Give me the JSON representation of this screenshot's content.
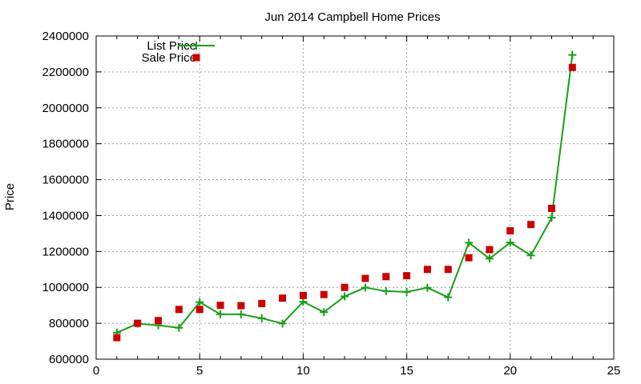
{
  "chart_data": {
    "type": "line",
    "title": "Jun 2014 Campbell Home Prices",
    "xlabel": "",
    "ylabel": "Price",
    "xlim": [
      0,
      25
    ],
    "ylim": [
      600000,
      2400000
    ],
    "x_ticks": [
      0,
      5,
      10,
      15,
      20,
      25
    ],
    "y_ticks": [
      600000,
      800000,
      1000000,
      1200000,
      1400000,
      1600000,
      1800000,
      2000000,
      2200000,
      2400000
    ],
    "grid": true,
    "legend_position": "top-left",
    "x": [
      1,
      2,
      3,
      4,
      5,
      6,
      7,
      8,
      9,
      10,
      11,
      12,
      13,
      14,
      15,
      16,
      17,
      18,
      19,
      20,
      21,
      22,
      23
    ],
    "series": [
      {
        "name": "List Price",
        "style": "linespoints",
        "marker": "plus",
        "color": "#1a9e1a",
        "values": [
          748000,
          798000,
          789000,
          775000,
          918000,
          850000,
          850000,
          828000,
          799000,
          920000,
          862000,
          950000,
          999000,
          979000,
          975000,
          998000,
          945000,
          1249000,
          1160000,
          1250000,
          1178000,
          1388000,
          2295000
        ]
      },
      {
        "name": "Sale Price",
        "style": "points",
        "marker": "square",
        "color": "#cc0000",
        "values": [
          720000,
          800000,
          815000,
          877000,
          877000,
          900000,
          898000,
          910000,
          940000,
          955000,
          960000,
          1000000,
          1050000,
          1060000,
          1065000,
          1100000,
          1100000,
          1165000,
          1210000,
          1315000,
          1350000,
          1440000,
          2225000
        ]
      }
    ]
  }
}
